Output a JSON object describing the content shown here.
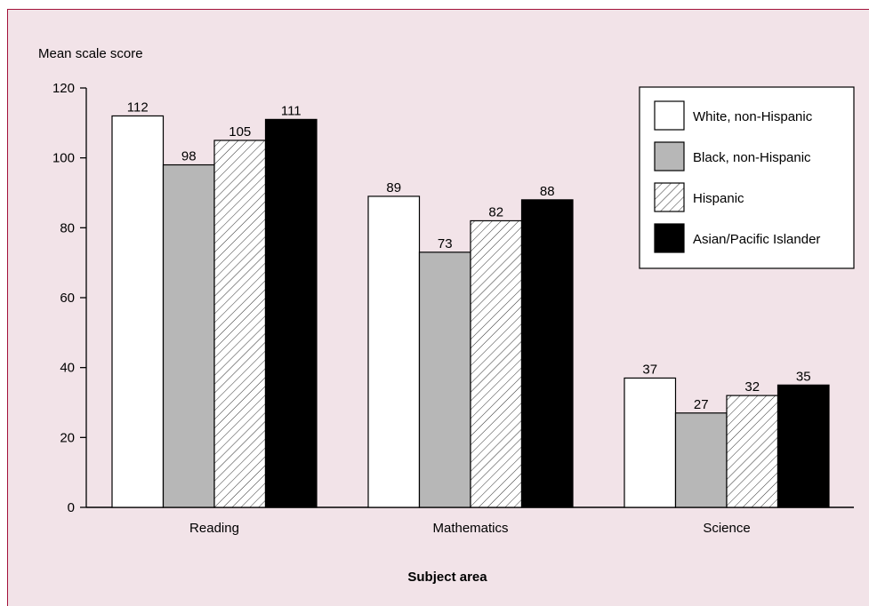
{
  "chart_data": {
    "type": "bar",
    "ylabel": "Mean scale score",
    "xlabel": "Subject area",
    "categories": [
      "Reading",
      "Mathematics",
      "Science"
    ],
    "ylim": [
      0,
      120
    ],
    "yticks": [
      "0",
      "20",
      "40",
      "60",
      "80",
      "100",
      "120"
    ],
    "series": [
      {
        "name": "White, non-Hispanic",
        "values": [
          112,
          89,
          37
        ],
        "fill": "#ffffff",
        "pattern": "solid"
      },
      {
        "name": "Black, non-Hispanic",
        "values": [
          98,
          73,
          27
        ],
        "fill": "#b7b7b7",
        "pattern": "solid"
      },
      {
        "name": "Hispanic",
        "values": [
          105,
          82,
          32
        ],
        "fill": "#ffffff",
        "pattern": "diagonal-hatch"
      },
      {
        "name": "Asian/Pacific Islander",
        "values": [
          111,
          88,
          35
        ],
        "fill": "#000000",
        "pattern": "solid"
      }
    ],
    "data_labels": true,
    "legend": "top-right",
    "grid": false
  }
}
